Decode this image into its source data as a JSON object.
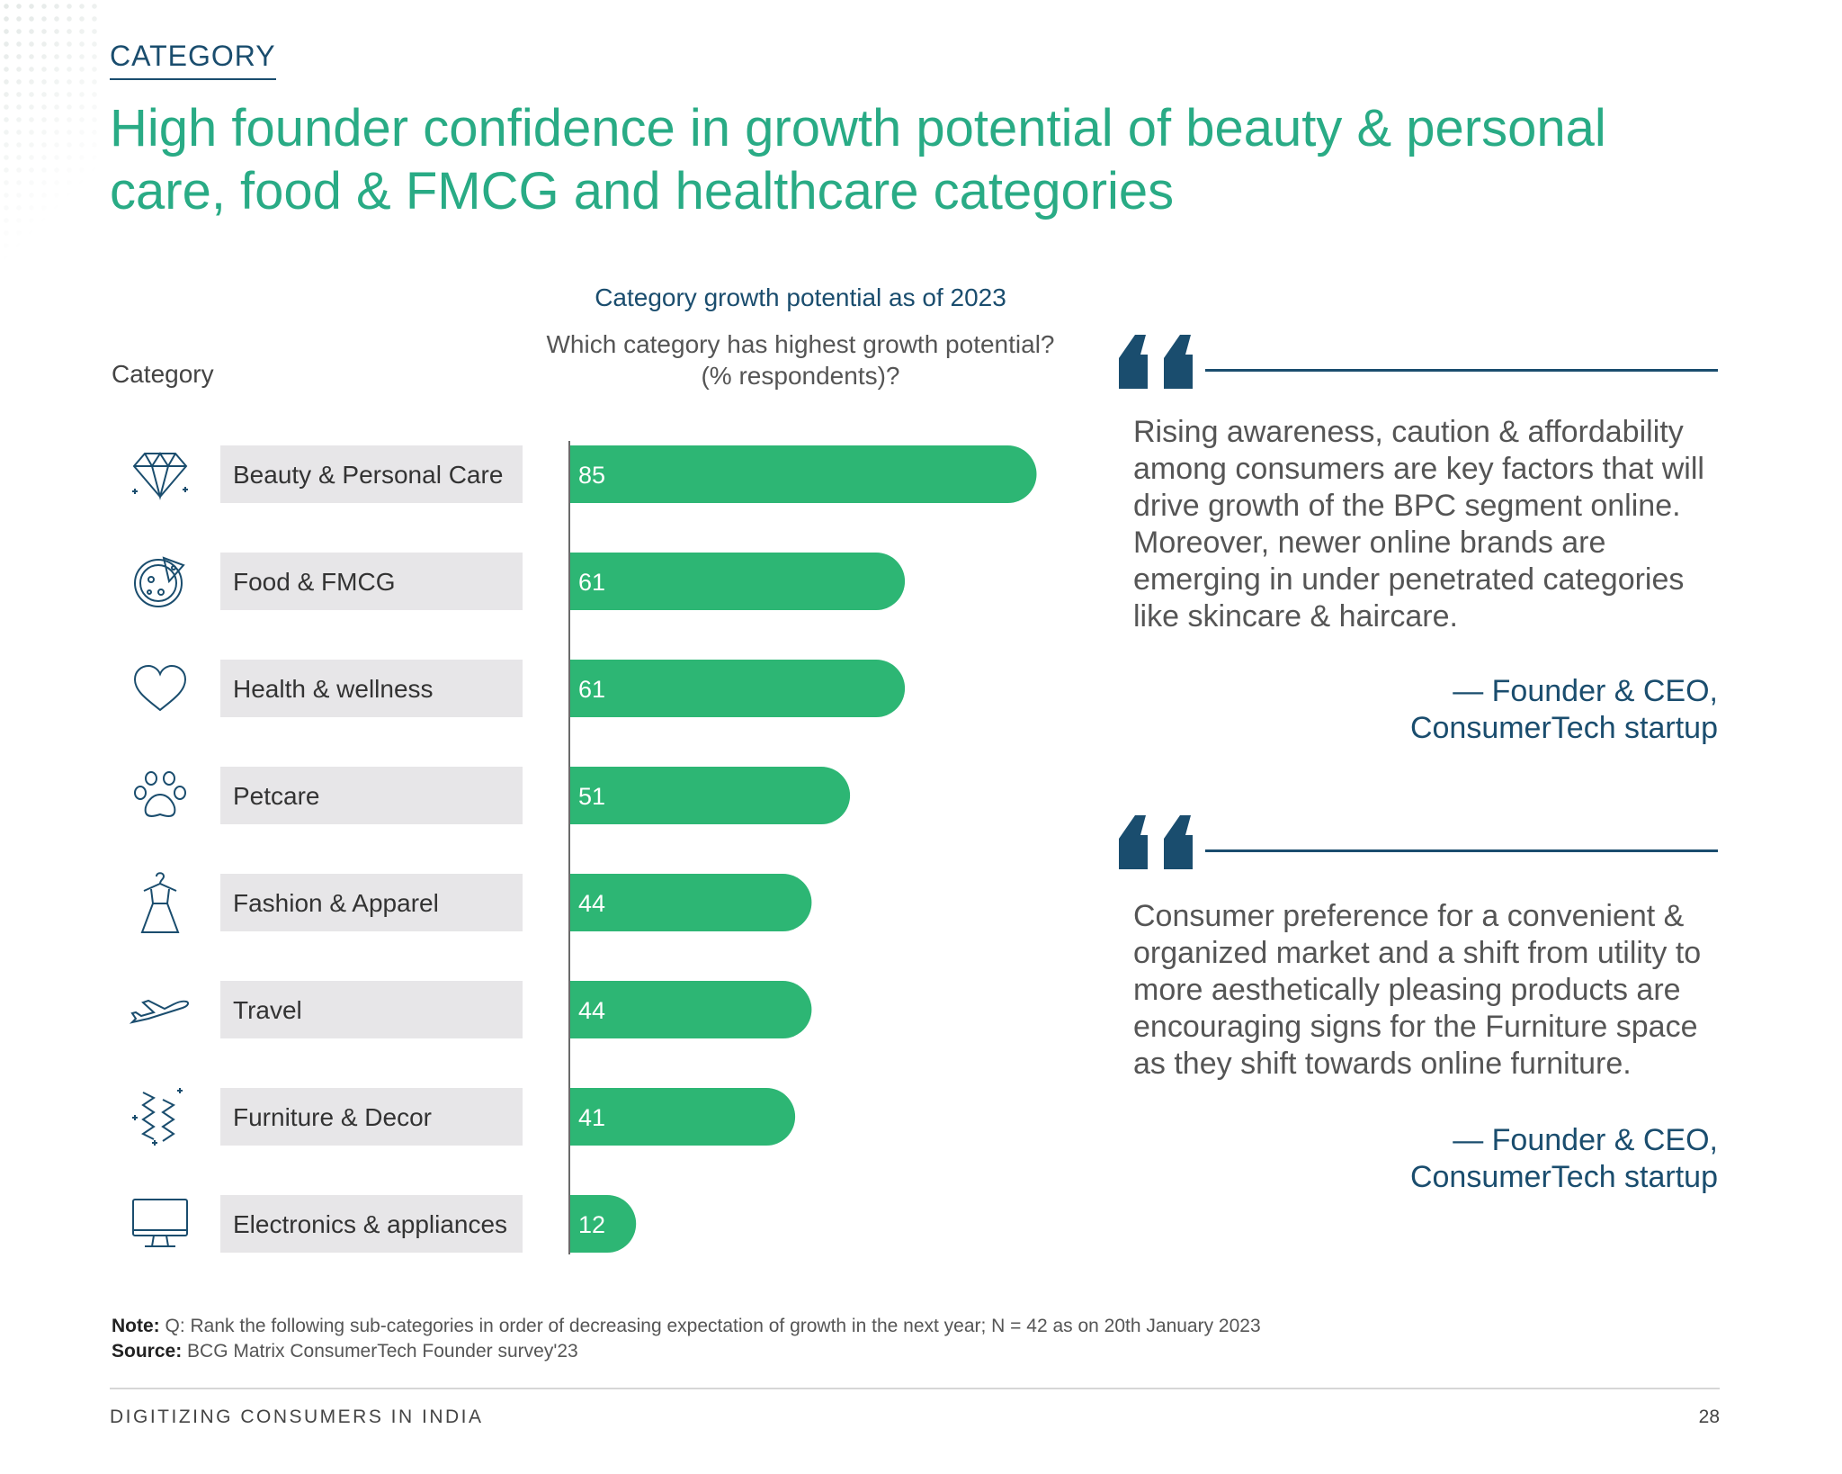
{
  "header": {
    "kicker": "CATEGORY",
    "headline": "High founder confidence in growth potential of beauty & personal care, food & FMCG and healthcare categories"
  },
  "chart_data": {
    "type": "bar",
    "title": "Category growth potential as of 2023",
    "subtitle": "Which category has highest growth potential? (% respondents)?",
    "category_axis_label": "Category",
    "categories": [
      "Beauty & Personal Care",
      "Food & FMCG",
      "Health & wellness",
      "Petcare",
      "Fashion & Apparel",
      "Travel",
      "Furniture & Decor",
      "Electronics & appliances"
    ],
    "icons": [
      "diamond-icon",
      "pizza-icon",
      "heart-icon",
      "paw-icon",
      "dress-icon",
      "airplane-icon",
      "curtain-icon",
      "monitor-icon"
    ],
    "values": [
      85,
      61,
      61,
      51,
      44,
      44,
      41,
      12
    ],
    "orientation": "horizontal",
    "xlim": [
      0,
      100
    ],
    "bar_color": "#2db674",
    "label_bg_color": "#e7e6e8"
  },
  "quotes": [
    {
      "text": "Rising awareness, caution & affordability among consumers are key factors that will drive growth of the BPC segment online. Moreover, newer online brands are emerging in under penetrated categories like skincare & haircare.",
      "author_line1": "— Founder & CEO,",
      "author_line2": "ConsumerTech startup"
    },
    {
      "text": "Consumer preference for a convenient & organized market and a shift from utility to more aesthetically pleasing products are encouraging signs for the Furniture space as they shift towards online furniture.",
      "author_line1": "— Founder & CEO,",
      "author_line2": "ConsumerTech startup"
    }
  ],
  "notes": {
    "note_label": "Note:",
    "note_text": " Q: Rank the following sub-categories in order of decreasing expectation of growth in the next year; N = 42 as on 20th January 2023",
    "source_label": "Source:",
    "source_text": " BCG Matrix ConsumerTech Founder survey'23"
  },
  "footer": {
    "left": "DIGITIZING CONSUMERS IN INDIA",
    "page_number": "28"
  },
  "colors": {
    "accent_green": "#29ab85",
    "navy": "#1a4d6e"
  }
}
